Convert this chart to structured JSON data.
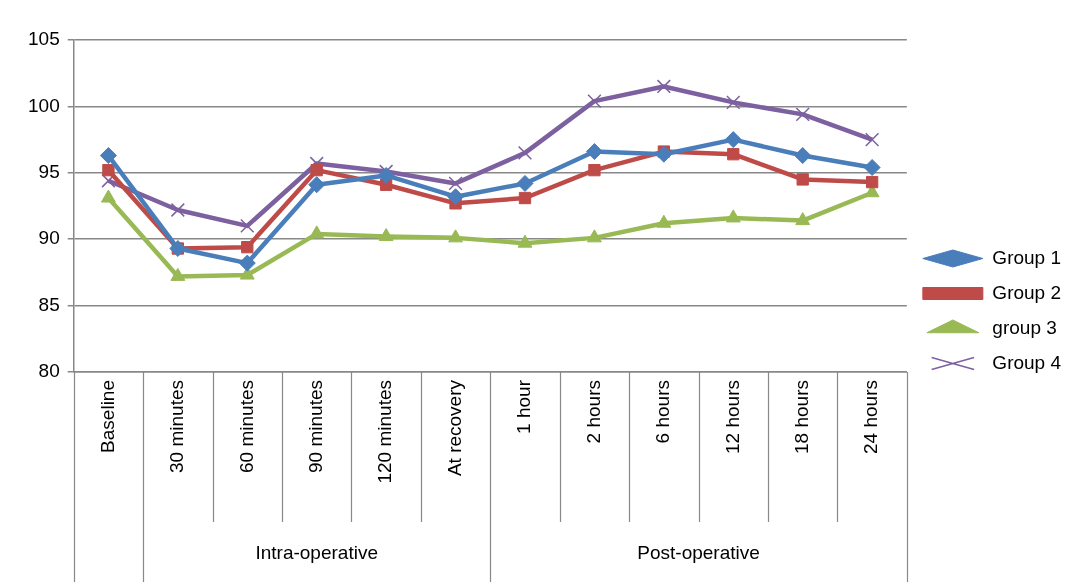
{
  "chart_data": {
    "type": "line",
    "categories": [
      "Baseline",
      "30 minutes",
      "60 minutes",
      "90 minutes",
      "120 minutes",
      "At recovery",
      "1 hour",
      "2 hours",
      "6 hours",
      "12 hours",
      "18 hours",
      "24 hours"
    ],
    "series": [
      {
        "name": "Group 1",
        "color": "#4a7ebb",
        "marker": "diamond",
        "values": [
          96.3,
          89.3,
          88.2,
          94.1,
          94.8,
          93.2,
          94.2,
          96.6,
          96.4,
          97.5,
          96.3,
          95.4
        ]
      },
      {
        "name": "Group 2",
        "color": "#be4b48",
        "marker": "square",
        "values": [
          95.2,
          89.3,
          89.4,
          95.2,
          94.1,
          92.7,
          93.1,
          95.2,
          96.6,
          96.4,
          94.5,
          94.3
        ]
      },
      {
        "name": "group 3",
        "color": "#98b954",
        "marker": "triangle",
        "values": [
          93.1,
          87.2,
          87.3,
          90.4,
          90.2,
          90.1,
          89.7,
          90.1,
          91.2,
          91.6,
          91.4,
          93.5
        ]
      },
      {
        "name": "Group 4",
        "color": "#7d60a0",
        "marker": "cross",
        "values": [
          94.4,
          92.2,
          91.0,
          95.7,
          95.1,
          94.2,
          96.5,
          100.4,
          101.5,
          100.3,
          99.4,
          97.5
        ]
      }
    ],
    "annotations": [
      "Intra-operative",
      "Post-operative"
    ],
    "ylim": [
      80,
      105
    ],
    "yticks": [
      80,
      85,
      90,
      95,
      100,
      105
    ],
    "grid": "y",
    "legend": "right",
    "line_style": "solid"
  }
}
